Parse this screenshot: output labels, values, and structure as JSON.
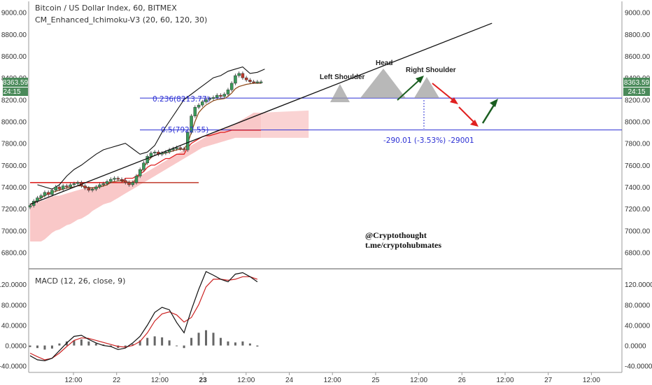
{
  "header": {
    "title": "Bitcoin / US Dollar Index, 60, BITMEX",
    "indicator": "CM_Enhanced_Ichimoku-V3 (20, 60, 120, 30)",
    "macd_label": "MACD (12, 26, close, 9)"
  },
  "price_badge": {
    "value": "8363.59",
    "countdown": "24:15",
    "color": "#4a8a5a"
  },
  "annotations": {
    "head": "Head",
    "left_shoulder": "Left Shoulder",
    "right_shoulder": "Right Shoulder",
    "fib_236": "0.236(8213.77)",
    "fib_5": "0.5(7922.55)",
    "measure": "-290.01 (-3.53%) -29001",
    "watermark_line1": "@Cryptothought",
    "watermark_line2": "t.me/cryptohubmates"
  },
  "colors": {
    "candle_up": "#3a9a5a",
    "candle_down": "#c0392b",
    "cloud": "#f7b6b6",
    "tenkan": "#8b4513",
    "kijun": "#e02020",
    "lagging": "#111111",
    "fib_line": "#2b2fd4",
    "macd_line": "#111111",
    "signal_line": "#cc2222",
    "histogram": "#666666",
    "arrow_up": "#1a5e20",
    "arrow_down": "#e02020"
  },
  "chart_data": [
    {
      "type": "candlestick",
      "title": "Bitcoin / US Dollar Index, 60, BITMEX",
      "xlabel": "",
      "ylabel": "",
      "x_ticks": [
        "12:00",
        "22",
        "12:00",
        "23",
        "12:00",
        "24",
        "12:00",
        "25",
        "12:00",
        "26",
        "12:00",
        "27",
        "12:00"
      ],
      "y_ticks": [
        6800,
        7000,
        7200,
        7400,
        7600,
        7800,
        8000,
        8200,
        8400,
        8600,
        8800,
        9000
      ],
      "ylim": [
        6650,
        9100
      ],
      "hours": [
        0,
        2,
        4,
        6,
        8,
        10,
        12,
        14,
        16,
        18,
        20,
        22,
        24,
        26,
        28,
        30,
        32,
        34,
        36,
        38,
        40,
        42,
        44,
        46,
        48,
        50,
        52,
        54,
        56,
        58,
        60,
        62,
        64,
        66,
        68,
        70,
        72,
        74,
        76,
        78,
        80,
        82,
        84,
        86,
        88,
        90,
        92,
        94,
        96,
        98,
        100,
        102,
        104,
        106,
        108,
        110,
        112,
        114,
        116,
        118,
        120,
        122,
        124,
        126
      ],
      "close": [
        7230,
        7270,
        7300,
        7320,
        7350,
        7330,
        7370,
        7400,
        7380,
        7410,
        7400,
        7420,
        7430,
        7440,
        7410,
        7390,
        7370,
        7380,
        7400,
        7420,
        7430,
        7450,
        7470,
        7480,
        7470,
        7460,
        7440,
        7420,
        7440,
        7500,
        7560,
        7620,
        7680,
        7710,
        7720,
        7700,
        7710,
        7720,
        7740,
        7750,
        7760,
        7750,
        7740,
        7900,
        8050,
        8130,
        8150,
        8180,
        8200,
        8210,
        8220,
        8240,
        8230,
        8250,
        8290,
        8350,
        8420,
        8440,
        8400,
        8380,
        8364,
        8363,
        8363,
        8363
      ],
      "tenkan": [
        7240,
        7260,
        7280,
        7300,
        7320,
        7340,
        7350,
        7360,
        7370,
        7380,
        7390,
        7395,
        7400,
        7410,
        7410,
        7400,
        7395,
        7390,
        7395,
        7400,
        7410,
        7420,
        7440,
        7450,
        7455,
        7455,
        7450,
        7440,
        7440,
        7470,
        7520,
        7580,
        7630,
        7670,
        7690,
        7700,
        7705,
        7710,
        7720,
        7730,
        7740,
        7745,
        7745,
        7800,
        7900,
        8000,
        8080,
        8120,
        8150,
        8170,
        8190,
        8200,
        8205,
        8210,
        8230,
        8260,
        8300,
        8320,
        8330,
        8340,
        8345,
        8350,
        8350,
        8350
      ],
      "kijun": [
        7440,
        7440,
        7440,
        7440,
        7440,
        7440,
        7440,
        7440,
        7440,
        7440,
        7440,
        7440,
        7440,
        7440,
        7440,
        7440,
        7440,
        7440,
        7440,
        7440,
        7440,
        7440,
        7440,
        7440,
        7440,
        7440,
        7480,
        7480,
        7480,
        7500,
        7520,
        7540,
        7580,
        7600,
        7600,
        7620,
        7640,
        7660,
        7660,
        7680,
        7700,
        7700,
        7700,
        7760,
        7800,
        7820,
        7840,
        7860,
        7870,
        7870,
        7880,
        7890,
        7900,
        7900,
        7910,
        7920,
        7920,
        7920,
        7920,
        7920,
        7920,
        7920,
        7920,
        7920
      ],
      "lagging": [
        7420,
        7400,
        7380,
        7420,
        7500,
        7560,
        7600,
        7650,
        7700,
        7740,
        7760,
        7780,
        7800,
        7750,
        7700,
        7720,
        7780,
        7900,
        8000,
        8100,
        8200,
        8250,
        8300,
        8350,
        8400,
        8420,
        8460,
        8480,
        8500,
        8440,
        8450,
        8480
      ],
      "cloud_top": [
        7240,
        7250,
        7260,
        7270,
        7280,
        7300,
        7310,
        7320,
        7320,
        7330,
        7340,
        7350,
        7360,
        7370,
        7380,
        7390,
        7400,
        7400,
        7410,
        7420,
        7420,
        7430,
        7430,
        7440,
        7440,
        7450,
        7450,
        7460,
        7460,
        7480,
        7500,
        7520,
        7540,
        7560,
        7580,
        7600,
        7620,
        7640,
        7660,
        7680,
        7700,
        7720,
        7740,
        7760,
        7780,
        7800,
        7820,
        7840,
        7860,
        7880,
        7900,
        7920,
        7930,
        7940,
        7950,
        7960,
        7980,
        8000,
        8020,
        8040,
        8060,
        8080,
        8080,
        8080
      ],
      "cloud_bottom": [
        6900,
        6900,
        6900,
        6900,
        6920,
        6950,
        6980,
        7000,
        7010,
        7030,
        7050,
        7060,
        7080,
        7100,
        7110,
        7130,
        7150,
        7180,
        7200,
        7220,
        7240,
        7250,
        7260,
        7280,
        7300,
        7320,
        7340,
        7360,
        7380,
        7400,
        7420,
        7440,
        7460,
        7480,
        7500,
        7520,
        7540,
        7560,
        7580,
        7600,
        7620,
        7640,
        7660,
        7680,
        7700,
        7720,
        7740,
        7760,
        7770,
        7780,
        7790,
        7800,
        7810,
        7820,
        7830,
        7840,
        7850,
        7850,
        7850,
        7850,
        7850,
        7850,
        7850,
        7850
      ],
      "current_price": 8363.59,
      "fib_levels": [
        {
          "label": "0.236(8213.77)",
          "value": 8213.77
        },
        {
          "label": "0.5(7922.55)",
          "value": 7922.55
        }
      ],
      "horizontal_line": 7440
    },
    {
      "type": "line",
      "title": "MACD (12, 26, close, 9)",
      "y_ticks": [
        -40,
        0,
        40,
        80,
        120
      ],
      "ylim": [
        -50,
        145
      ],
      "hours": [
        0,
        4,
        8,
        12,
        16,
        20,
        24,
        28,
        32,
        36,
        40,
        44,
        48,
        52,
        56,
        60,
        64,
        68,
        72,
        76,
        80,
        84,
        88,
        92,
        96,
        100,
        104,
        108,
        112,
        116,
        120,
        124
      ],
      "macd": [
        -20,
        -28,
        -30,
        -25,
        -10,
        5,
        18,
        20,
        12,
        5,
        0,
        -2,
        -8,
        -5,
        5,
        18,
        40,
        65,
        75,
        70,
        45,
        25,
        70,
        110,
        145,
        138,
        130,
        125,
        140,
        143,
        135,
        125
      ],
      "signal": [
        -15,
        -22,
        -28,
        -25,
        -15,
        -2,
        10,
        15,
        14,
        10,
        6,
        2,
        -2,
        -3,
        0,
        8,
        25,
        48,
        62,
        66,
        60,
        46,
        55,
        80,
        115,
        130,
        130,
        128,
        130,
        135,
        135,
        130
      ],
      "histogram": [
        -3,
        -5,
        -8,
        -6,
        4,
        8,
        10,
        12,
        8,
        4,
        2,
        -2,
        -5,
        -4,
        3,
        10,
        15,
        18,
        16,
        10,
        0,
        -5,
        15,
        25,
        30,
        25,
        15,
        8,
        6,
        8,
        4,
        -2
      ]
    }
  ]
}
